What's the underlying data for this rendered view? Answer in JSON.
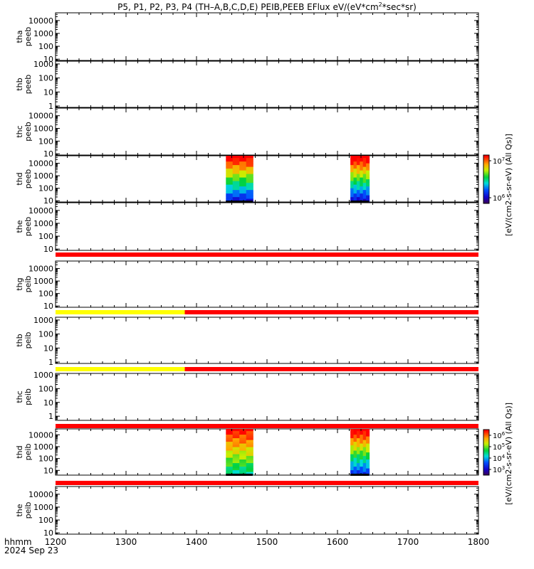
{
  "title_prefix": "P5, P1, P2, P3, P4 (TH–A,B,C,D,E) PEIB,PEEB EFlux eV/(eV*cm",
  "title_sup": "2",
  "title_suffix": "*sec*sr)",
  "xaxis": {
    "label_line1": "hhmm",
    "label_line2": "2024 Sep 23",
    "ticks": [
      "1200",
      "1300",
      "1400",
      "1500",
      "1600",
      "1700",
      "1800"
    ]
  },
  "colorbars": [
    {
      "label": "[eV/(cm2-s-sr-eV) (All Qs)]",
      "tick_labels": [
        "10",
        "10"
      ],
      "tick_exps": [
        "7",
        "6"
      ]
    },
    {
      "label": "[eV/(cm2-s-sr-eV) (All Qs)]",
      "tick_labels": [
        "10",
        "10",
        "10",
        "10"
      ],
      "tick_exps": [
        "6",
        "5",
        "4",
        "3"
      ]
    }
  ],
  "chart_data": {
    "type": "heatmap",
    "x": {
      "range_hhmm": [
        "1200",
        "1800"
      ],
      "range_minutes": [
        720,
        1080
      ]
    },
    "panels": [
      {
        "id": "thapeeb",
        "label1": "tha",
        "label2": "peeb",
        "yticks": [
          "10000",
          "1000",
          "100",
          "10"
        ],
        "ylog": [
          0.9,
          4.6
        ],
        "data": []
      },
      {
        "id": "thbpeeb",
        "label1": "thb",
        "label2": "peeb",
        "yticks": [
          "1000",
          "100",
          "10",
          "1"
        ],
        "ylog": [
          -0.1,
          3.2
        ],
        "data": []
      },
      {
        "id": "thcpeeb",
        "label1": "thc",
        "label2": "peeb",
        "yticks": [
          "10000",
          "1000",
          "100",
          "10"
        ],
        "ylog": [
          0.9,
          4.6
        ],
        "data": []
      },
      {
        "id": "thdpeeb",
        "label1": "thd",
        "label2": "peeb",
        "yticks": [
          "10000",
          "1000",
          "100",
          "10"
        ],
        "ylog": [
          0.9,
          4.6
        ],
        "data": [
          {
            "x_start_hhmm": "1425",
            "x_end_hhmm": "1448",
            "kind": "dense"
          },
          {
            "x_start_hhmm": "1611",
            "x_end_hhmm": "1627",
            "kind": "streaked"
          }
        ]
      },
      {
        "id": "thepeeb",
        "label1": "the",
        "label2": "peeb",
        "yticks": [
          "10000",
          "1000",
          "100",
          "10"
        ],
        "ylog": [
          0.9,
          4.6
        ],
        "data": []
      },
      {
        "id": "thgpeib",
        "label1": "thg",
        "label2": "peib",
        "yticks": [
          "10000",
          "1000",
          "100",
          "10"
        ],
        "ylog": [
          0.9,
          4.6
        ],
        "data": []
      },
      {
        "id": "thbpeib",
        "label1": "thb",
        "label2": "peib",
        "yticks": [
          "1000",
          "100",
          "10",
          "1"
        ],
        "ylog": [
          -0.1,
          3.2
        ],
        "data": []
      },
      {
        "id": "thcpeib",
        "label1": "thc",
        "label2": "peib",
        "yticks": [
          "1000",
          "100",
          "10",
          "1"
        ],
        "ylog": [
          -0.3,
          3.1
        ],
        "data": []
      },
      {
        "id": "thdpeib",
        "label1": "thd",
        "label2": "peib",
        "yticks": [
          "10000",
          "1000",
          "100",
          "10"
        ],
        "ylog": [
          0.6,
          4.5
        ],
        "data": [
          {
            "x_start_hhmm": "1425",
            "x_end_hhmm": "1448",
            "kind": "ion"
          },
          {
            "x_start_hhmm": "1611",
            "x_end_hhmm": "1627",
            "kind": "ion2"
          }
        ]
      },
      {
        "id": "thepeib",
        "label1": "the",
        "label2": "peib",
        "yticks": [
          "10000",
          "1000",
          "100",
          "10"
        ],
        "ylog": [
          0.9,
          4.6
        ],
        "data": []
      }
    ],
    "flag_bars": [
      {
        "after_panel": "thepeeb",
        "segments": [
          {
            "from": "1200",
            "to": "1800",
            "color": "#ff0000"
          }
        ]
      },
      {
        "after_panel": "thgpeib",
        "segments": [
          {
            "from": "1200",
            "to": "1350",
            "color": "#ffff00"
          },
          {
            "from": "1350",
            "to": "1800",
            "color": "#ff0000"
          }
        ]
      },
      {
        "after_panel": "thbpeib",
        "segments": [
          {
            "from": "1200",
            "to": "1350",
            "color": "#ffff00"
          },
          {
            "from": "1350",
            "to": "1800",
            "color": "#ff0000"
          }
        ]
      },
      {
        "after_panel": "thcpeib",
        "segments": [
          {
            "from": "1200",
            "to": "1800",
            "color": "#ff0000"
          }
        ]
      },
      {
        "after_panel": "thdpeib",
        "segments": [
          {
            "from": "1200",
            "to": "1800",
            "color": "#ff0000"
          }
        ]
      }
    ]
  }
}
